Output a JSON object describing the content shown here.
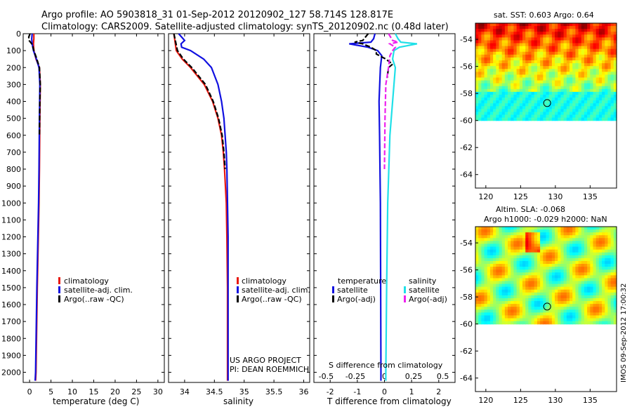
{
  "header": {
    "title_line1": "Argo profile: AO 5903818_31 01-Sep-2012 20120902_127 58.714S 128.817E",
    "title_line2": "Climatology: CARS2009. Satellite-adjusted climatology: synTS_20120902.nc (0.48d later)"
  },
  "colors": {
    "climatology": "#e8190f",
    "satellite": "#1010e0",
    "argo": "#000000",
    "sal_satellite": "#20e0e8",
    "sal_argo": "#ee22ee"
  },
  "depth_axis": {
    "ticks": [
      0,
      100,
      200,
      300,
      400,
      500,
      600,
      700,
      800,
      900,
      1000,
      1100,
      1200,
      1300,
      1400,
      1500,
      1600,
      1700,
      1800,
      1900,
      2000
    ],
    "ylim": [
      0,
      2060
    ]
  },
  "chart_data": [
    {
      "type": "line",
      "id": "temperature",
      "xlabel": "temperature (deg C)",
      "xlim": [
        -1.5,
        31.5
      ],
      "xticks": [
        0,
        5,
        10,
        15,
        20,
        25,
        30
      ],
      "legend": [
        "climatology",
        "satellite-adj. clim.",
        "Argo(..raw -QC)"
      ],
      "series": [
        {
          "name": "climatology",
          "color": "#e8190f",
          "depth": [
            0,
            30,
            60,
            100,
            150,
            200,
            300,
            500,
            800,
            1000,
            1500,
            2000,
            2050
          ],
          "values": [
            1.0,
            1.0,
            0.9,
            1.0,
            1.5,
            2.3,
            2.5,
            2.4,
            2.3,
            2.2,
            1.8,
            1.5,
            1.4
          ]
        },
        {
          "name": "satellite-adj. clim.",
          "color": "#1010e0",
          "depth": [
            0,
            30,
            60,
            100,
            150,
            200,
            300,
            500,
            800,
            1000,
            1500,
            2000,
            2050
          ],
          "values": [
            0.6,
            0.5,
            0.6,
            0.9,
            1.6,
            2.2,
            2.4,
            2.3,
            2.2,
            2.1,
            1.7,
            1.4,
            1.3
          ]
        },
        {
          "name": "Argo(..raw -QC)",
          "color": "#000000",
          "depth": [
            0,
            20,
            40,
            60,
            80,
            100,
            150,
            200,
            300,
            400,
            600
          ],
          "values": [
            0.1,
            -0.2,
            -0.1,
            0.5,
            0.8,
            1.0,
            1.7,
            2.3,
            2.5,
            2.4,
            2.3
          ]
        }
      ]
    },
    {
      "type": "line",
      "id": "salinity",
      "xlabel": "salinity",
      "xlim": [
        33.73,
        36.1
      ],
      "xticks": [
        34,
        34.5,
        35,
        35.5,
        36
      ],
      "xticklabels": [
        "34",
        "34.5",
        "35",
        "35.5",
        "36"
      ],
      "legend": [
        "climatology",
        "satellite-adj. clim.",
        "Argo(..raw -QC)"
      ],
      "series": [
        {
          "name": "climatology",
          "color": "#e8190f",
          "depth": [
            0,
            100,
            150,
            200,
            300,
            400,
            500,
            600,
            700,
            800,
            1000,
            1200,
            1500,
            2000,
            2050
          ],
          "values": [
            33.82,
            33.86,
            33.96,
            34.1,
            34.33,
            34.47,
            34.56,
            34.62,
            34.65,
            34.67,
            34.7,
            34.71,
            34.72,
            34.72,
            34.72
          ]
        },
        {
          "name": "satellite-adj. clim.",
          "color": "#1010e0",
          "depth": [
            0,
            40,
            60,
            80,
            100,
            150,
            200,
            300,
            400,
            500,
            600,
            700,
            800,
            1000,
            1200,
            1500,
            2000,
            2050
          ],
          "values": [
            33.9,
            34.0,
            33.94,
            33.95,
            34.1,
            34.32,
            34.45,
            34.56,
            34.62,
            34.66,
            34.68,
            34.7,
            34.71,
            34.72,
            34.73,
            34.73,
            34.73,
            34.73
          ]
        },
        {
          "name": "Argo(..raw -QC)",
          "color": "#000000",
          "depth": [
            0,
            100,
            150,
            200,
            300,
            400,
            500,
            600,
            700,
            800
          ],
          "values": [
            33.82,
            33.88,
            33.98,
            34.12,
            34.35,
            34.48,
            34.57,
            34.63,
            34.66,
            34.68
          ]
        }
      ],
      "footnote": [
        "US ARGO PROJECT",
        "PI: DEAN ROEMMICH"
      ]
    },
    {
      "type": "line",
      "id": "differences",
      "xlabel": "T difference from climatology",
      "xlabel_top": "S difference from climatology",
      "xlim": [
        -2.6,
        2.6
      ],
      "xticks": [
        -2,
        -1,
        0,
        1,
        2
      ],
      "top_ticks": [
        -0.5,
        -0.25,
        0,
        0.25,
        0.5
      ],
      "top_ticklabels": [
        "-0.5",
        "-0.25",
        "0",
        "0.25",
        "0.5"
      ],
      "legend_temperature_title": "temperature",
      "legend_salinity_title": "salinity",
      "legend": [
        "satellite",
        "Argo(-adj)",
        "satellite",
        "Argo(-adj)"
      ],
      "series": [
        {
          "name": "satellite",
          "color": "#1010e0",
          "depth": [
            0,
            30,
            50,
            60,
            80,
            100,
            130,
            200,
            400,
            600,
            1000,
            1500,
            2000,
            2050
          ],
          "values": [
            -0.35,
            -0.4,
            -0.5,
            -1.3,
            -0.6,
            -0.25,
            -0.1,
            -0.15,
            -0.2,
            -0.18,
            -0.15,
            -0.14,
            -0.13,
            -0.13
          ]
        },
        {
          "name": "Argo(-adj)",
          "color": "#000000",
          "depth": [
            0,
            40,
            50,
            60,
            80,
            100,
            120,
            150,
            180,
            200,
            260
          ],
          "values": [
            -0.6,
            -0.8,
            -1.1,
            -0.8,
            -0.5,
            -0.3,
            -0.3,
            0.05,
            0.3,
            0.15,
            0.1
          ]
        },
        {
          "name": "satellite",
          "color": "#20e0e8",
          "depth": [
            0,
            30,
            50,
            60,
            80,
            100,
            150,
            200,
            400,
            600,
            1000,
            1500,
            2000,
            2050
          ],
          "values": [
            0.4,
            0.5,
            0.6,
            1.2,
            0.55,
            0.35,
            0.3,
            0.4,
            0.3,
            0.2,
            0.12,
            0.08,
            0.05,
            0.05
          ]
        },
        {
          "name": "Argo(-adj)",
          "color": "#ee22ee",
          "depth": [
            0,
            40,
            50,
            60,
            80,
            100,
            130,
            200,
            300,
            500,
            800
          ],
          "values": [
            0.15,
            0.3,
            0.5,
            0.2,
            0.4,
            0.3,
            0.2,
            0.15,
            0.05,
            0.02,
            0.0
          ]
        }
      ]
    },
    {
      "type": "heatmap",
      "id": "sst_map",
      "title": "sat. SST: 0.603 Argo: 0.64",
      "xlim": [
        118.5,
        138.8
      ],
      "ylim": [
        -65,
        -52.8
      ],
      "data_lat_range": [
        -60,
        -52.8
      ],
      "xticks": [
        120,
        125,
        130,
        135
      ],
      "yticks": [
        -54,
        -56,
        -58,
        -60,
        -62,
        -64
      ],
      "marker": {
        "lon": 128.82,
        "lat": -58.71
      }
    },
    {
      "type": "heatmap",
      "id": "sla_map",
      "title_line1": "Altim. SLA: -0.068",
      "title_line2": "Argo h1000: -0.029 h2000: NaN",
      "xlim": [
        118.5,
        138.8
      ],
      "ylim": [
        -65,
        -52.8
      ],
      "data_lat_range": [
        -60,
        -52.8
      ],
      "xticks": [
        120,
        125,
        130,
        135
      ],
      "yticks": [
        -54,
        -56,
        -58,
        -60,
        -62,
        -64
      ],
      "marker": {
        "lon": 128.82,
        "lat": -58.71
      }
    }
  ],
  "stamp": "IMOS 09-Sep-2012 17:00:32"
}
